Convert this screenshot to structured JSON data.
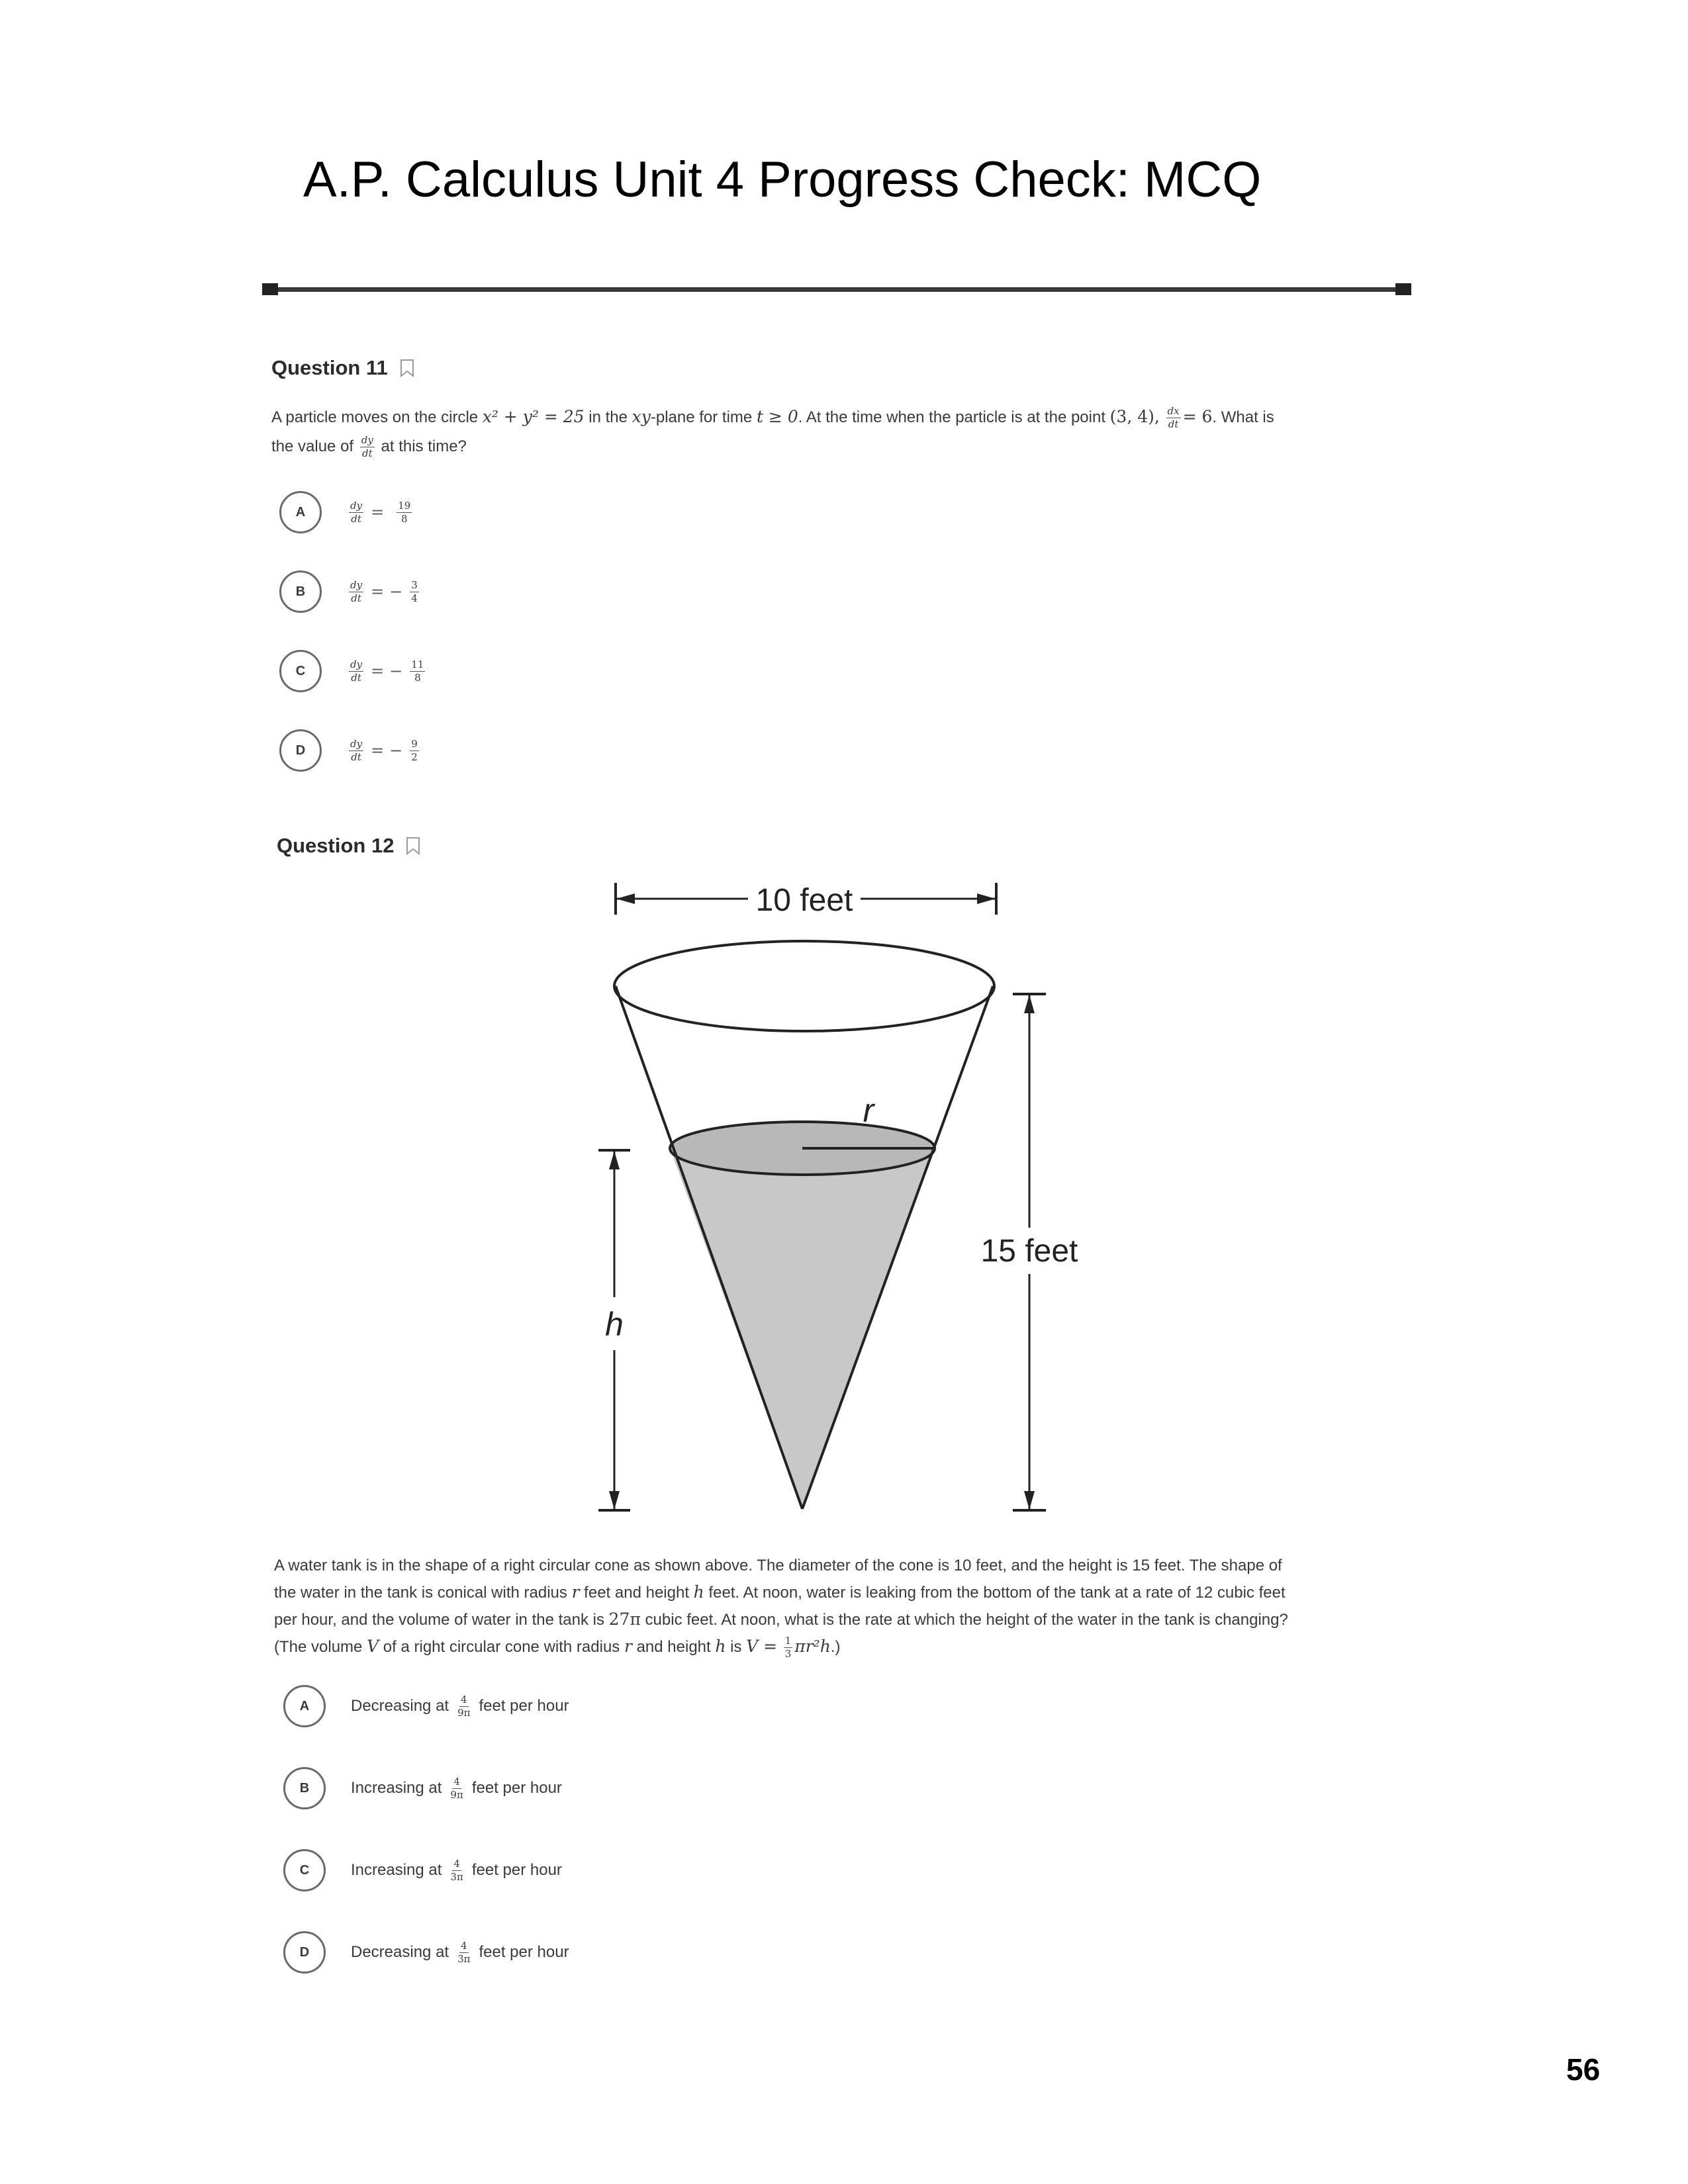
{
  "header": {
    "title": "A.P. Calculus Unit 4 Progress Check: MCQ"
  },
  "q11": {
    "label": "Question 11",
    "text": {
      "p1": "A particle moves on the circle ",
      "circle_eq": "x² + y² = 25",
      "p2": " in the ",
      "plane": "xy",
      "p3": "-plane for time ",
      "time": "t ≥ 0",
      "p4": ". At the time when the particle is at the point ",
      "point": "(3, 4),",
      "dx_num": "dx",
      "dx_den": "dt",
      "dx_val": "= 6",
      "p5": ". What is",
      "p6": "the value of ",
      "dy_num": "dy",
      "dy_den": "dt",
      "p7": " at this time?"
    },
    "choices": [
      {
        "letter": "A",
        "lhs_num": "dy",
        "lhs_den": "dt",
        "rel": "=",
        "sign": "",
        "num": "19",
        "den": "8"
      },
      {
        "letter": "B",
        "lhs_num": "dy",
        "lhs_den": "dt",
        "rel": "=",
        "sign": "−",
        "num": "3",
        "den": "4"
      },
      {
        "letter": "C",
        "lhs_num": "dy",
        "lhs_den": "dt",
        "rel": "=",
        "sign": "−",
        "num": "11",
        "den": "8"
      },
      {
        "letter": "D",
        "lhs_num": "dy",
        "lhs_den": "dt",
        "rel": "=",
        "sign": "−",
        "num": "9",
        "den": "2"
      }
    ]
  },
  "q12": {
    "label": "Question 12",
    "figure": {
      "diameter_label": "10 feet",
      "height_label": "15 feet",
      "radius_var": "r",
      "height_var": "h"
    },
    "text": {
      "l1": "A water tank is in the shape of a right circular cone as shown above. The diameter of the cone is 10 feet, and the height is 15 feet. The shape of",
      "l2a": "the water in the tank is conical with radius ",
      "r": "r",
      "l2b": " feet and height ",
      "h": "h",
      "l2c": " feet. At noon, water is leaking from the bottom of the tank at a rate of 12 cubic feet",
      "l3a": "per hour, and the volume of water in the tank is ",
      "vol": "27π",
      "l3b": " cubic feet. At noon, what is the rate at which the height of the water in the tank is changing?",
      "l4a": "(The volume ",
      "V": "V",
      "l4b": " of a right circular cone with radius ",
      "r2": "r",
      "l4c": " and height ",
      "h2": "h",
      "l4d": " is ",
      "formula_lhs": "V =",
      "third_num": "1",
      "third_den": "3",
      "formula_rhs": "πr²h",
      "l4e": ".)"
    },
    "choices": [
      {
        "letter": "A",
        "pre": "Decreasing at",
        "num": "4",
        "den": "9π",
        "post": "feet per hour"
      },
      {
        "letter": "B",
        "pre": "Increasing at",
        "num": "4",
        "den": "9π",
        "post": "feet per hour"
      },
      {
        "letter": "C",
        "pre": "Increasing at",
        "num": "4",
        "den": "3π",
        "post": "feet per hour"
      },
      {
        "letter": "D",
        "pre": "Decreasing at",
        "num": "4",
        "den": "3π",
        "post": "feet per hour"
      }
    ]
  },
  "footer": {
    "page_number": "56"
  },
  "colors": {
    "water_fill": "#c8c8c8",
    "line": "#222222",
    "rule": "#2a2a2a"
  }
}
